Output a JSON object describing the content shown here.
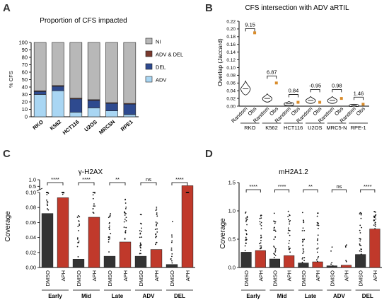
{
  "panels": {
    "A": {
      "letter": "A"
    },
    "B": {
      "letter": "B"
    },
    "C": {
      "letter": "C"
    },
    "D": {
      "letter": "D"
    }
  },
  "chart_data": [
    {
      "panel": "A",
      "type": "bar",
      "stacked": true,
      "title": "Proportion of CFS impacted",
      "ylabel": "% CFS",
      "ylim": [
        0,
        100
      ],
      "yticks": [
        0,
        10,
        20,
        30,
        40,
        50,
        60,
        70,
        80,
        90,
        100
      ],
      "categories": [
        "RKO",
        "K562",
        "HCT116",
        "U2OS",
        "MRC5N",
        "RPE1"
      ],
      "series": [
        {
          "name": "ADV",
          "color": "#a9d6f3",
          "values": [
            30,
            35,
            6,
            12,
            8,
            3
          ]
        },
        {
          "name": "DEL",
          "color": "#2e4a8f",
          "values": [
            4,
            6,
            18,
            10,
            10,
            14
          ]
        },
        {
          "name": "ADV & DEL",
          "color": "#7a3a2e",
          "values": [
            1,
            1,
            1,
            1,
            1,
            1
          ]
        },
        {
          "name": "NI",
          "color": "#b8b8b8",
          "values": [
            65,
            58,
            75,
            77,
            81,
            82
          ]
        }
      ],
      "legend_order": [
        "NI",
        "ADV & DEL",
        "DEL",
        "ADV"
      ],
      "legend": "right"
    },
    {
      "panel": "B",
      "type": "violin",
      "title": "CFS intersection with ADV aRTIL",
      "ylabel": "Overlap (Jaccard)",
      "ylim": [
        0,
        0.22
      ],
      "yticks": [
        0.0,
        0.02,
        0.04,
        0.06,
        0.08,
        0.1,
        0.12,
        0.14,
        0.16,
        0.18,
        0.2,
        0.22
      ],
      "ytick_labels": [
        "0.00",
        "0.02",
        "0.04",
        "0.06",
        "0.08",
        "0.10",
        "0.12",
        "0.14",
        "0.16",
        "0.18",
        "0.20",
        "0.22"
      ],
      "tick_labels": [
        "Random",
        "Obs"
      ],
      "groups": [
        {
          "name": "RKO",
          "random_median": 0.045,
          "random_spread": 0.02,
          "obs": 0.19,
          "annotation": "9.15"
        },
        {
          "name": "K562",
          "random_median": 0.02,
          "random_spread": 0.012,
          "obs": 0.06,
          "annotation": "6.87"
        },
        {
          "name": "HCT116",
          "random_median": 0.006,
          "random_spread": 0.006,
          "obs": 0.01,
          "annotation": "0.84"
        },
        {
          "name": "U2OS",
          "random_median": 0.015,
          "random_spread": 0.01,
          "obs": 0.01,
          "annotation": "-0.95"
        },
        {
          "name": "MRC5-N",
          "random_median": 0.015,
          "random_spread": 0.01,
          "obs": 0.02,
          "annotation": "0.98"
        },
        {
          "name": "RPE-1",
          "random_median": 0.002,
          "random_spread": 0.003,
          "obs": 0.005,
          "annotation": "1.46"
        }
      ]
    },
    {
      "panel": "C",
      "type": "bar",
      "title": "γ-H2AX",
      "ylabel": "Coverage",
      "y_break": true,
      "lower_ylim": [
        0,
        0.1
      ],
      "lower_yticks": [
        "0.00",
        "0.02",
        "0.04",
        "0.06",
        "0.08",
        "0.10"
      ],
      "upper_ylim": [
        0.25,
        1.0
      ],
      "upper_yticks": [
        "0.5",
        "1.0"
      ],
      "categories": [
        "DMSO",
        "APH",
        "DMSO",
        "APH",
        "DMSO",
        "APH",
        "DMSO",
        "APH",
        "DMSO",
        "APH"
      ],
      "groups": [
        "Early",
        "Mid",
        "Late",
        "ADV",
        "DEL"
      ],
      "values": [
        0.072,
        0.093,
        0.011,
        0.067,
        0.015,
        0.034,
        0.015,
        0.024,
        0.004,
        0.55
      ],
      "colors": [
        "#333333",
        "#c0392b",
        "#333333",
        "#c0392b",
        "#333333",
        "#c0392b",
        "#333333",
        "#c0392b",
        "#333333",
        "#c0392b"
      ],
      "significance": [
        "****",
        "****",
        "**",
        "ns",
        "****"
      ]
    },
    {
      "panel": "D",
      "type": "bar",
      "title": "mH2A1.2",
      "ylabel": "Coverage",
      "ylim": [
        0,
        1.5
      ],
      "yticks": [
        "0.0",
        "0.5",
        "1.0",
        "1.5"
      ],
      "categories": [
        "DMSO",
        "APH",
        "DMSO",
        "APH",
        "DMSO",
        "APH",
        "DMSO",
        "APH",
        "DMSO",
        "APH"
      ],
      "groups": [
        "Early",
        "Mid",
        "Late",
        "ADV",
        "DEL"
      ],
      "values": [
        0.27,
        0.3,
        0.15,
        0.21,
        0.08,
        0.1,
        0.03,
        0.04,
        0.23,
        0.68
      ],
      "colors": [
        "#333333",
        "#c0392b",
        "#333333",
        "#c0392b",
        "#333333",
        "#c0392b",
        "#333333",
        "#c0392b",
        "#333333",
        "#c0392b"
      ],
      "significance": [
        "****",
        "****",
        "**",
        "ns",
        "****"
      ]
    }
  ]
}
